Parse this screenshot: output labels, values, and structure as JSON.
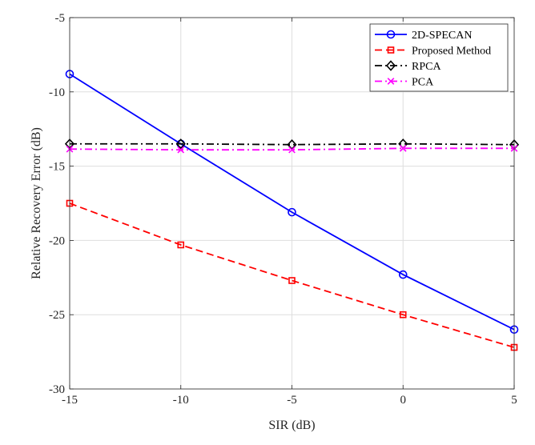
{
  "chart_data": {
    "type": "line",
    "title": "",
    "xlabel": "SIR (dB)",
    "ylabel": "Relative Recovery Error (dB)",
    "x": [
      -15,
      -10,
      -5,
      0,
      5
    ],
    "xlim": [
      -15,
      5
    ],
    "ylim": [
      -30,
      -5
    ],
    "xticks": [
      -15,
      -10,
      -5,
      0,
      5
    ],
    "yticks": [
      -30,
      -25,
      -20,
      -15,
      -10,
      -5
    ],
    "xtick_labels": [
      "-15",
      "-10",
      "-5",
      "0",
      "5"
    ],
    "ytick_labels": [
      "-30",
      "-25",
      "-20",
      "-15",
      "-10",
      "-5"
    ],
    "grid": true,
    "legend_position": "top-right",
    "series": [
      {
        "name": "2D-SPECAN",
        "values": [
          -8.8,
          -13.5,
          -18.1,
          -22.3,
          -26.0
        ],
        "color": "#0000ff",
        "dash": "solid",
        "marker": "circle"
      },
      {
        "name": "Proposed Method",
        "values": [
          -17.5,
          -20.3,
          -22.7,
          -25.0,
          -27.2
        ],
        "color": "#ff0000",
        "dash": "dashed",
        "marker": "square"
      },
      {
        "name": "RPCA",
        "values": [
          -13.5,
          -13.5,
          -13.55,
          -13.5,
          -13.55
        ],
        "color": "#000000",
        "dash": "dashdot",
        "marker": "diamond"
      },
      {
        "name": "PCA",
        "values": [
          -13.85,
          -13.9,
          -13.9,
          -13.8,
          -13.8
        ],
        "color": "#ff00ff",
        "dash": "dashdot",
        "marker": "x"
      }
    ]
  }
}
